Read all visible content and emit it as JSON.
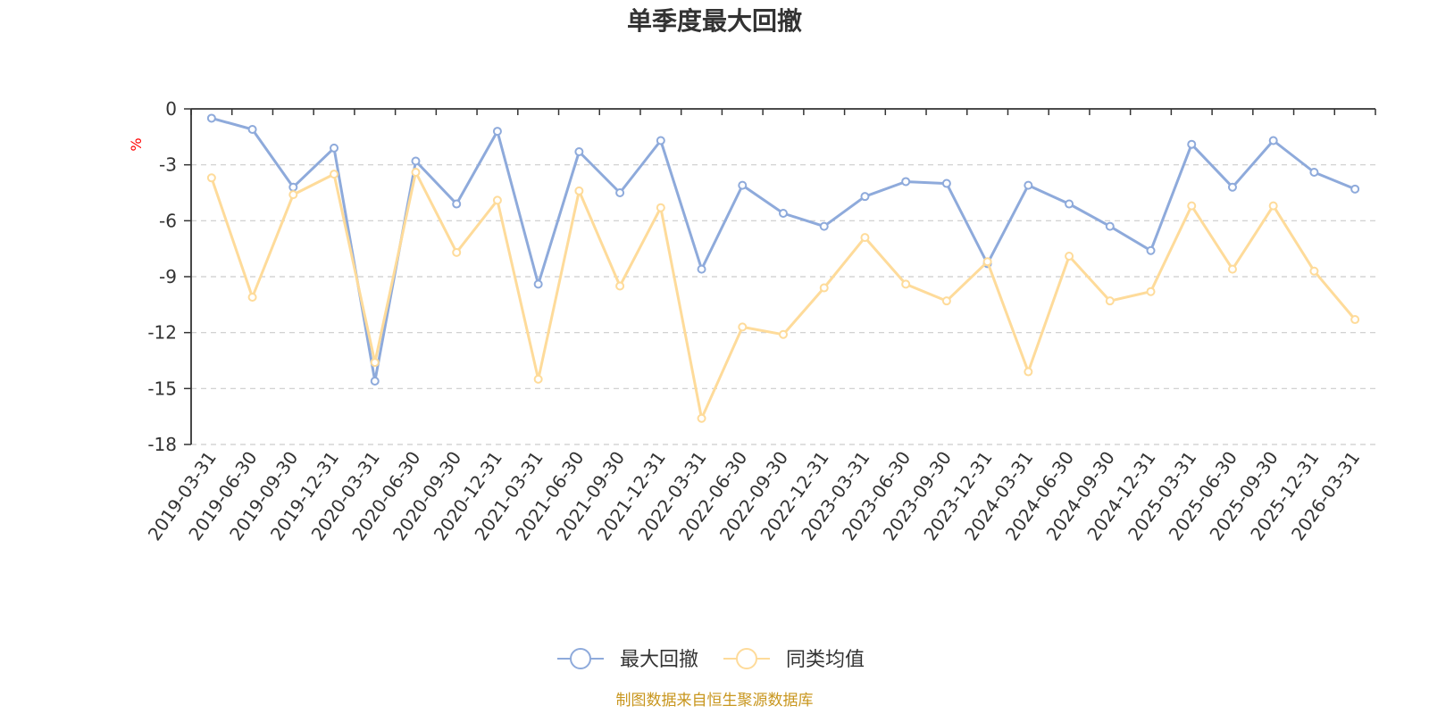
{
  "chart_data": {
    "type": "line",
    "title": "单季度最大回撤",
    "ylabel": "%",
    "xlabel": "",
    "ylim": [
      -18,
      0
    ],
    "yticks": [
      0,
      -3,
      -6,
      -9,
      -12,
      -15,
      -18
    ],
    "grid": true,
    "legend_position": "bottom-center",
    "categories": [
      "2019-03-31",
      "2019-06-30",
      "2019-09-30",
      "2019-12-31",
      "2020-03-31",
      "2020-06-30",
      "2020-09-30",
      "2020-12-31",
      "2021-03-31",
      "2021-06-30",
      "2021-09-30",
      "2021-12-31",
      "2022-03-31",
      "2022-06-30",
      "2022-09-30",
      "2022-12-31",
      "2023-03-31",
      "2023-06-30",
      "2023-09-30",
      "2023-12-31",
      "2024-03-31",
      "2024-06-30",
      "2024-09-30",
      "2024-12-31",
      "2025-03-31",
      "2025-06-30",
      "2025-09-30",
      "2025-12-31",
      "2026-03-31"
    ],
    "series": [
      {
        "name": "最大回撤",
        "color": "#8eaadb",
        "values": [
          -0.5,
          -1.1,
          -4.2,
          -2.1,
          -14.6,
          -2.8,
          -5.1,
          -1.2,
          -9.4,
          -2.3,
          -4.5,
          -1.7,
          -8.6,
          -4.1,
          -5.6,
          -6.3,
          -4.7,
          -3.9,
          -4.0,
          -8.3,
          -4.1,
          -5.1,
          -6.3,
          -7.6,
          -1.9,
          -4.2,
          -1.7,
          -3.4,
          -4.3
        ]
      },
      {
        "name": "同类均值",
        "color": "#fedb9a",
        "values": [
          -3.7,
          -10.1,
          -4.6,
          -3.5,
          -13.6,
          -3.4,
          -7.7,
          -4.9,
          -14.5,
          -4.4,
          -9.5,
          -5.3,
          -16.6,
          -11.7,
          -12.1,
          -9.6,
          -6.9,
          -9.4,
          -10.3,
          -8.2,
          -14.1,
          -7.9,
          -10.3,
          -9.8,
          -5.2,
          -8.6,
          -5.2,
          -8.7,
          -11.3
        ]
      }
    ]
  },
  "footer": {
    "source_text": "制图数据来自恒生聚源数据库",
    "source_color": "#c8961e"
  },
  "unit_color": "#ff0000"
}
